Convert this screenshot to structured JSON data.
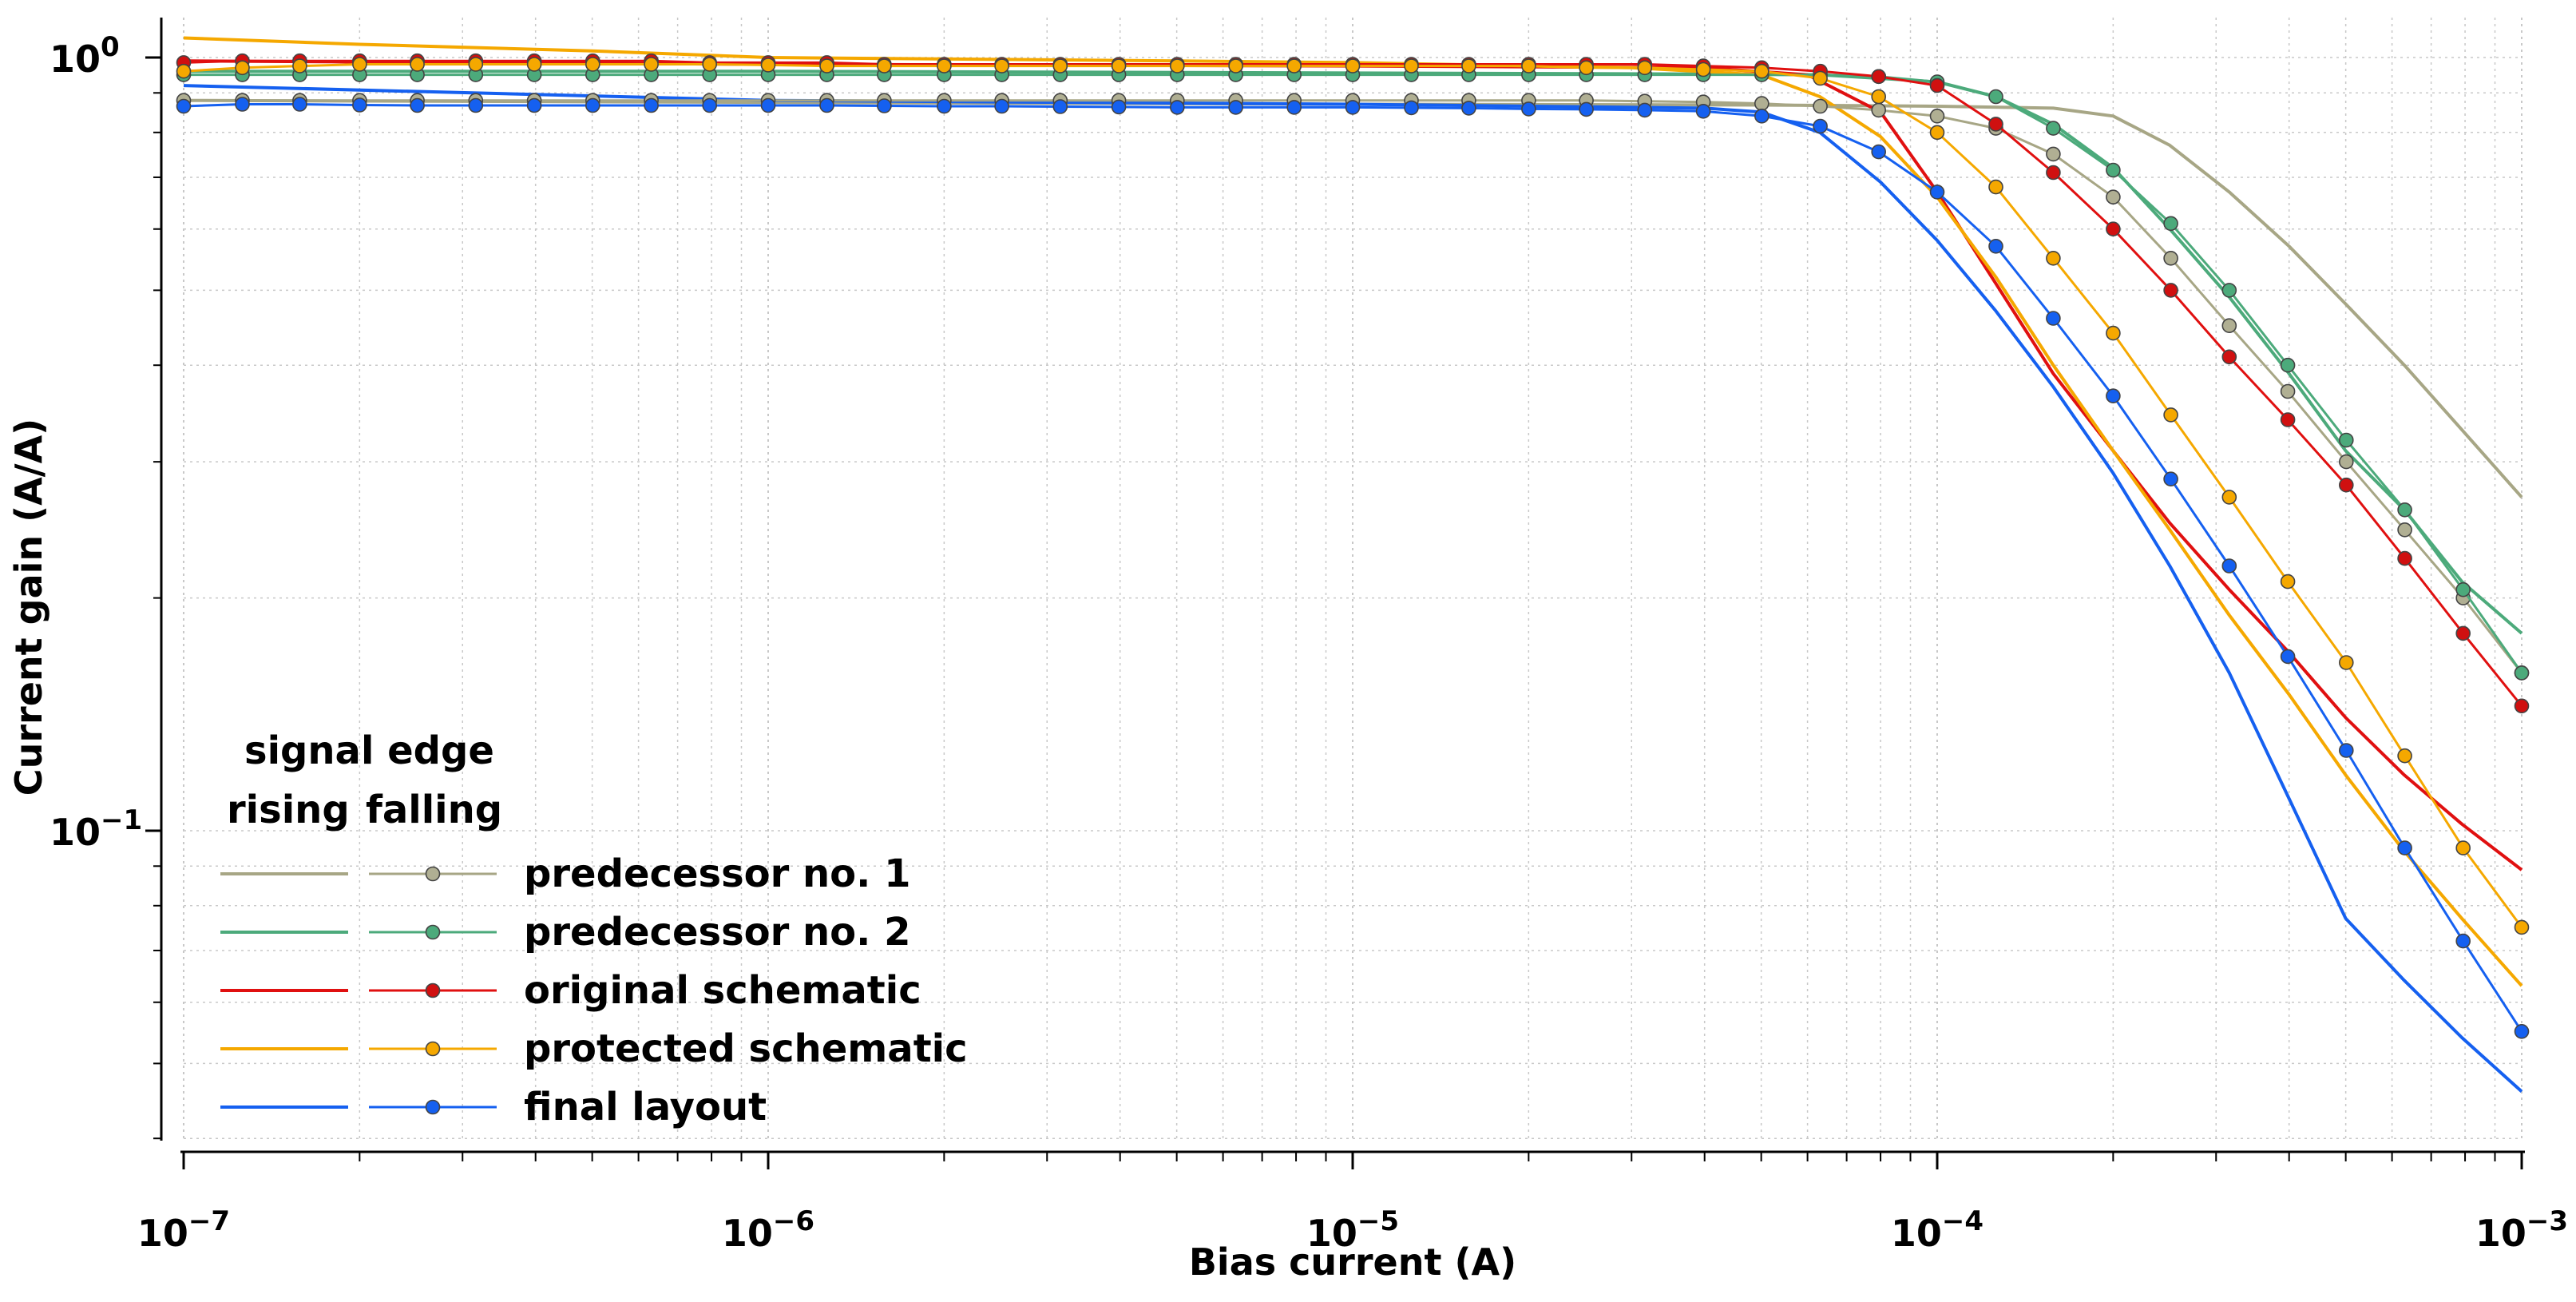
{
  "chart_data": {
    "type": "line",
    "title": "",
    "xlabel": "Bias current (A)",
    "ylabel": "Current gain (A/A)",
    "xscale": "log",
    "yscale": "log",
    "xlim": [
      1e-07,
      0.001
    ],
    "ylim": [
      0.04,
      1.1
    ],
    "grid": true,
    "x_ticks": [
      {
        "value": 1e-07,
        "base": "10",
        "exp": "−7"
      },
      {
        "value": 1e-06,
        "base": "10",
        "exp": "−6"
      },
      {
        "value": 1e-05,
        "base": "10",
        "exp": "−5"
      },
      {
        "value": 0.0001,
        "base": "10",
        "exp": "−4"
      },
      {
        "value": 0.001,
        "base": "10",
        "exp": "−3"
      }
    ],
    "y_ticks": [
      {
        "value": 1.0,
        "base": "10",
        "exp": "0"
      },
      {
        "value": 0.1,
        "base": "10",
        "exp": "−1"
      }
    ],
    "legend": {
      "position": "bottom-left",
      "header": "signal edge",
      "col_rising": "rising",
      "col_falling": "falling"
    },
    "series": [
      {
        "name": "predecessor no. 1",
        "color": "#a7a685",
        "marker_color": "#b0af93",
        "rising": {
          "x": [
            1e-07,
            1e-06,
            1e-05,
            5e-05,
            0.0001,
            0.000158,
            0.0002,
            0.00025,
            0.000316,
            0.0004,
            0.0005,
            0.00063,
            0.00079,
            0.001
          ],
          "y": [
            0.88,
            0.875,
            0.87,
            0.868,
            0.865,
            0.86,
            0.84,
            0.77,
            0.67,
            0.57,
            0.48,
            0.4,
            0.33,
            0.27
          ]
        },
        "falling": {
          "x": [
            1e-07,
            1.26e-07,
            1.58e-07,
            2e-07,
            2.51e-07,
            3.16e-07,
            3.98e-07,
            5.01e-07,
            6.31e-07,
            7.94e-07,
            1e-06,
            1.26e-06,
            1.58e-06,
            2e-06,
            2.51e-06,
            3.16e-06,
            3.98e-06,
            5.01e-06,
            6.31e-06,
            7.94e-06,
            1e-05,
            1.26e-05,
            1.58e-05,
            2e-05,
            2.51e-05,
            3.16e-05,
            3.98e-05,
            5.01e-05,
            6.31e-05,
            7.94e-05,
            0.0001,
            0.000126,
            0.000158,
            0.0002,
            0.000251,
            0.000316,
            0.000398,
            0.000501,
            0.000631,
            0.000794,
            0.001
          ],
          "y": [
            0.88,
            0.88,
            0.88,
            0.88,
            0.88,
            0.88,
            0.88,
            0.88,
            0.88,
            0.88,
            0.88,
            0.88,
            0.88,
            0.88,
            0.88,
            0.88,
            0.88,
            0.88,
            0.88,
            0.88,
            0.88,
            0.88,
            0.88,
            0.88,
            0.88,
            0.878,
            0.876,
            0.872,
            0.865,
            0.855,
            0.84,
            0.81,
            0.75,
            0.66,
            0.55,
            0.45,
            0.37,
            0.3,
            0.245,
            0.2,
            0.16
          ]
        }
      },
      {
        "name": "predecessor no. 2",
        "color": "#4caa7b",
        "marker_color": "#4caa7b",
        "rising": {
          "x": [
            1e-07,
            1e-06,
            1e-05,
            4e-05,
            6.3e-05,
            0.0001,
            0.000126,
            0.000158,
            0.0002,
            0.00025,
            0.000316,
            0.0004,
            0.0005,
            0.00063,
            0.00079,
            0.001
          ],
          "y": [
            0.96,
            0.96,
            0.955,
            0.952,
            0.95,
            0.93,
            0.89,
            0.82,
            0.72,
            0.6,
            0.49,
            0.39,
            0.31,
            0.26,
            0.21,
            0.18
          ]
        },
        "falling": {
          "x": [
            1e-07,
            1.26e-07,
            1.58e-07,
            2e-07,
            2.51e-07,
            3.16e-07,
            3.98e-07,
            5.01e-07,
            6.31e-07,
            7.94e-07,
            1e-06,
            1.26e-06,
            1.58e-06,
            2e-06,
            2.51e-06,
            3.16e-06,
            3.98e-06,
            5.01e-06,
            6.31e-06,
            7.94e-06,
            1e-05,
            1.26e-05,
            1.58e-05,
            2e-05,
            2.51e-05,
            3.16e-05,
            3.98e-05,
            5.01e-05,
            6.31e-05,
            7.94e-05,
            0.0001,
            0.000126,
            0.000158,
            0.0002,
            0.000251,
            0.000316,
            0.000398,
            0.000501,
            0.000631,
            0.000794,
            0.001
          ],
          "y": [
            0.95,
            0.95,
            0.95,
            0.95,
            0.95,
            0.95,
            0.95,
            0.95,
            0.95,
            0.95,
            0.95,
            0.95,
            0.95,
            0.95,
            0.95,
            0.95,
            0.95,
            0.95,
            0.95,
            0.95,
            0.95,
            0.95,
            0.95,
            0.95,
            0.95,
            0.95,
            0.95,
            0.95,
            0.95,
            0.945,
            0.93,
            0.89,
            0.81,
            0.715,
            0.61,
            0.5,
            0.4,
            0.32,
            0.26,
            0.205,
            0.16
          ]
        }
      },
      {
        "name": "original schematic",
        "color": "#e01010",
        "marker_color": "#d01010",
        "rising": {
          "x": [
            1e-07,
            1e-06,
            1e-05,
            4e-05,
            6e-05,
            8e-05,
            0.0001,
            0.000126,
            0.000158,
            0.0002,
            0.00025,
            0.000316,
            0.0004,
            0.0005,
            0.00063,
            0.00079,
            0.001
          ],
          "y": [
            0.99,
            0.98,
            0.975,
            0.97,
            0.95,
            0.85,
            0.67,
            0.51,
            0.39,
            0.31,
            0.25,
            0.205,
            0.17,
            0.14,
            0.118,
            0.102,
            0.089
          ]
        },
        "falling": {
          "x": [
            1e-07,
            1.26e-07,
            1.58e-07,
            2e-07,
            2.51e-07,
            3.16e-07,
            3.98e-07,
            5.01e-07,
            6.31e-07,
            7.94e-07,
            1e-06,
            1.26e-06,
            1.58e-06,
            2e-06,
            2.51e-06,
            3.16e-06,
            3.98e-06,
            5.01e-06,
            6.31e-06,
            7.94e-06,
            1e-05,
            1.26e-05,
            1.58e-05,
            2e-05,
            2.51e-05,
            3.16e-05,
            3.98e-05,
            5.01e-05,
            6.31e-05,
            7.94e-05,
            0.0001,
            0.000126,
            0.000158,
            0.0002,
            0.000251,
            0.000316,
            0.000398,
            0.000501,
            0.000631,
            0.000794,
            0.001
          ],
          "y": [
            0.985,
            0.99,
            0.99,
            0.99,
            0.99,
            0.99,
            0.99,
            0.99,
            0.99,
            0.985,
            0.985,
            0.985,
            0.98,
            0.98,
            0.98,
            0.98,
            0.98,
            0.98,
            0.98,
            0.98,
            0.98,
            0.98,
            0.98,
            0.98,
            0.98,
            0.98,
            0.975,
            0.97,
            0.96,
            0.945,
            0.92,
            0.82,
            0.71,
            0.6,
            0.5,
            0.41,
            0.34,
            0.28,
            0.225,
            0.18,
            0.145
          ]
        }
      },
      {
        "name": "protected schematic",
        "color": "#f5a800",
        "marker_color": "#f5a800",
        "rising": {
          "x": [
            1e-07,
            2e-07,
            5e-07,
            1e-06,
            5e-06,
            1e-05,
            3e-05,
            5e-05,
            6.3e-05,
            8e-05,
            0.0001,
            0.000126,
            0.000158,
            0.0002,
            0.00025,
            0.000316,
            0.0004,
            0.0005,
            0.00063,
            0.00079,
            0.001
          ],
          "y": [
            1.06,
            1.04,
            1.02,
            1.0,
            0.99,
            0.985,
            0.97,
            0.95,
            0.89,
            0.79,
            0.66,
            0.52,
            0.4,
            0.31,
            0.245,
            0.19,
            0.15,
            0.118,
            0.094,
            0.077,
            0.063
          ]
        },
        "falling": {
          "x": [
            1e-07,
            1.26e-07,
            1.58e-07,
            2e-07,
            2.51e-07,
            3.16e-07,
            3.98e-07,
            5.01e-07,
            6.31e-07,
            7.94e-07,
            1e-06,
            1.26e-06,
            1.58e-06,
            2e-06,
            2.51e-06,
            3.16e-06,
            3.98e-06,
            5.01e-06,
            6.31e-06,
            7.94e-06,
            1e-05,
            1.26e-05,
            1.58e-05,
            2e-05,
            2.51e-05,
            3.16e-05,
            3.98e-05,
            5.01e-05,
            6.31e-05,
            7.94e-05,
            0.0001,
            0.000126,
            0.000158,
            0.0002,
            0.000251,
            0.000316,
            0.000398,
            0.000501,
            0.000631,
            0.000794,
            0.001
          ],
          "y": [
            0.96,
            0.97,
            0.975,
            0.98,
            0.98,
            0.98,
            0.98,
            0.98,
            0.98,
            0.98,
            0.978,
            0.975,
            0.975,
            0.975,
            0.975,
            0.975,
            0.975,
            0.975,
            0.975,
            0.975,
            0.975,
            0.975,
            0.975,
            0.975,
            0.97,
            0.97,
            0.965,
            0.96,
            0.94,
            0.89,
            0.8,
            0.68,
            0.55,
            0.44,
            0.345,
            0.27,
            0.21,
            0.165,
            0.125,
            0.095,
            0.075
          ]
        }
      },
      {
        "name": "final layout",
        "color": "#1560f0",
        "marker_color": "#1560f0",
        "rising": {
          "x": [
            1e-07,
            1e-06,
            1e-05,
            4e-05,
            5e-05,
            6.3e-05,
            8e-05,
            0.0001,
            0.000126,
            0.000158,
            0.0002,
            0.00025,
            0.000316,
            0.0004,
            0.0005,
            0.00063,
            0.00079,
            0.001
          ],
          "y": [
            0.92,
            0.88,
            0.87,
            0.86,
            0.85,
            0.8,
            0.69,
            0.58,
            0.47,
            0.375,
            0.29,
            0.22,
            0.16,
            0.11,
            0.077,
            0.064,
            0.054,
            0.046
          ]
        },
        "falling": {
          "x": [
            1e-07,
            1.26e-07,
            1.58e-07,
            2e-07,
            2.51e-07,
            3.16e-07,
            3.98e-07,
            5.01e-07,
            6.31e-07,
            7.94e-07,
            1e-06,
            1.26e-06,
            1.58e-06,
            2e-06,
            2.51e-06,
            3.16e-06,
            3.98e-06,
            5.01e-06,
            6.31e-06,
            7.94e-06,
            1e-05,
            1.26e-05,
            1.58e-05,
            2e-05,
            2.51e-05,
            3.16e-05,
            3.98e-05,
            5.01e-05,
            6.31e-05,
            7.94e-05,
            0.0001,
            0.000126,
            0.000158,
            0.0002,
            0.000251,
            0.000316,
            0.000398,
            0.000501,
            0.000631,
            0.000794,
            0.001
          ],
          "y": [
            0.865,
            0.87,
            0.87,
            0.868,
            0.867,
            0.867,
            0.867,
            0.867,
            0.867,
            0.867,
            0.867,
            0.867,
            0.866,
            0.865,
            0.865,
            0.864,
            0.863,
            0.862,
            0.862,
            0.862,
            0.862,
            0.861,
            0.86,
            0.858,
            0.857,
            0.855,
            0.852,
            0.84,
            0.815,
            0.755,
            0.67,
            0.57,
            0.46,
            0.365,
            0.285,
            0.22,
            0.168,
            0.127,
            0.095,
            0.072,
            0.055
          ]
        }
      }
    ]
  }
}
